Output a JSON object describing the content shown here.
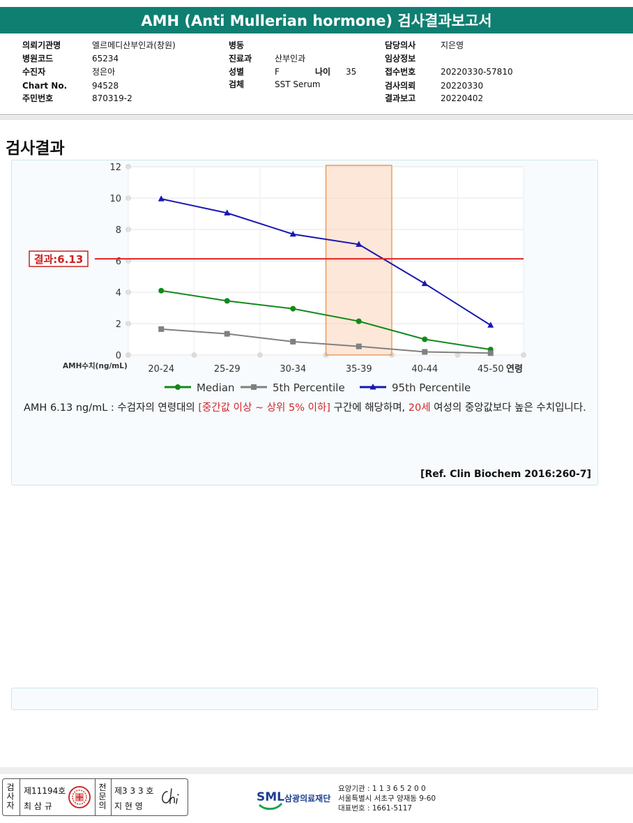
{
  "report_title": "AMH (Anti Mullerian hormone) 검사결과보고서",
  "info": {
    "col1": [
      {
        "label": "의뢰기관명",
        "value": "엘르메디산부인과(창원)"
      },
      {
        "label": "병원코드",
        "value": "65234"
      },
      {
        "label": "수진자",
        "value": "정은아"
      },
      {
        "label": "Chart No.",
        "value": "94528"
      },
      {
        "label": "주민번호",
        "value": "870319-2"
      }
    ],
    "col2": [
      {
        "label": "병동",
        "value": ""
      },
      {
        "label": "진료과",
        "value": "산부인과"
      },
      {
        "label": "성별",
        "value": "F"
      },
      {
        "label": "검체",
        "value": "SST Serum"
      }
    ],
    "age": {
      "label": "나이",
      "value": "35"
    },
    "col3": [
      {
        "label": "담당의사",
        "value": "지은영"
      },
      {
        "label": "임상정보",
        "value": ""
      },
      {
        "label": "접수번호",
        "value": "20220330-57810"
      },
      {
        "label": "검사의뢰",
        "value": "20220330"
      },
      {
        "label": "결과보고",
        "value": "20220402"
      }
    ]
  },
  "section_title": "검사결과",
  "chart_data": {
    "type": "line",
    "categories": [
      "20-24",
      "25-29",
      "30-34",
      "35-39",
      "40-44",
      "45-50"
    ],
    "x_axis_label": "연령",
    "y_axis_label": "AMH수치(ng/mL)",
    "yticks": [
      "0",
      "2",
      "4",
      "6",
      "8",
      "10",
      "12"
    ],
    "ylim": [
      0,
      12
    ],
    "highlight_category": "35-39",
    "result_line": {
      "value": 6.13,
      "label": "결과:6.13",
      "color": "#e02020"
    },
    "legend_position": "bottom",
    "series": [
      {
        "name": "Median",
        "color": "#12891a",
        "marker": "circle",
        "values": [
          4.1,
          3.45,
          2.95,
          2.15,
          1.0,
          0.35
        ]
      },
      {
        "name": "5th Percentile",
        "color": "#808080",
        "marker": "square",
        "values": [
          1.65,
          1.35,
          0.85,
          0.55,
          0.2,
          0.12
        ]
      },
      {
        "name": "95th Percentile",
        "color": "#1818b0",
        "marker": "triangle",
        "values": [
          9.95,
          9.05,
          7.7,
          7.05,
          4.55,
          1.9
        ]
      }
    ]
  },
  "description": {
    "part1": "AMH  6.13 ng/mL : 수검자의 연령대의 ",
    "part2": "[중간값 이상 ~ 상위 5% 이하]",
    "part3": "  구간에 해당하며, ",
    "part4": "20세",
    "part5": " 여성의 중앙값보다 높은 수치입니다."
  },
  "reference": "[Ref. Clin Biochem 2016:260-7]",
  "footer": {
    "examiner_label": "검사자",
    "examiner_license": "제11194호",
    "examiner_name": "최 삼 규",
    "specialist_label": "전문의",
    "specialist_license": "제3 3 3 호",
    "specialist_name": "지 현 영",
    "logo_text": "SML",
    "foundation": "삼광의료재단",
    "address_lines": [
      "요양기관 : 1 1 3 6 5 2 0 0",
      "서울특별시 서초구 양재동 9-60",
      "대표번호 : 1661-5117"
    ]
  }
}
